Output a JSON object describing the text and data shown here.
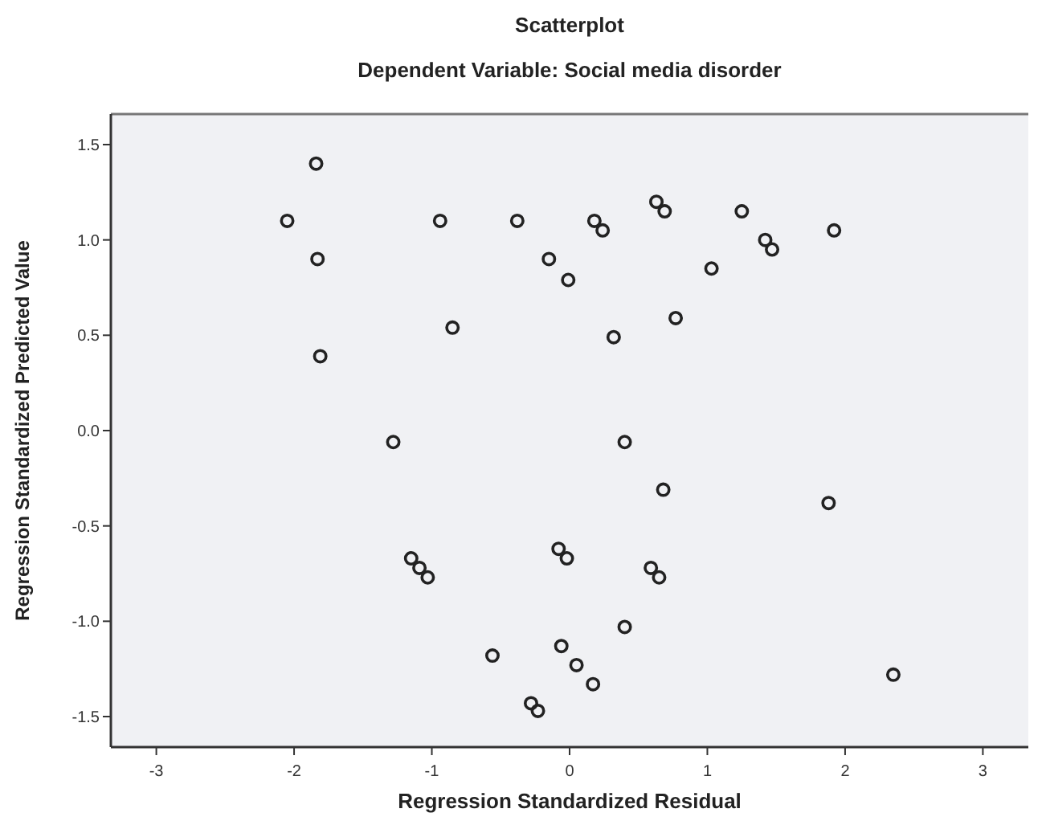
{
  "chart_data": {
    "type": "scatter",
    "title": "Scatterplot",
    "subtitle": "Dependent Variable: Social media disorder",
    "xlabel": "Regression Standardized Residual",
    "ylabel": "Regression Standardized Predicted Value",
    "xlim": [
      -3.33,
      3.33
    ],
    "ylim": [
      -1.66,
      1.66
    ],
    "xticks": [
      -3,
      -2,
      -1,
      0,
      1,
      2,
      3
    ],
    "yticks": [
      {
        "value": -1.5,
        "label": "-1.5"
      },
      {
        "value": -1,
        "label": "-1.0"
      },
      {
        "value": -0.5,
        "label": "-0.5"
      },
      {
        "value": 0,
        "label": "0.0"
      },
      {
        "value": 0.5,
        "label": "0.5"
      },
      {
        "value": 1,
        "label": "1.0"
      },
      {
        "value": 1.5,
        "label": "1.5"
      }
    ],
    "marker": "circle",
    "series": [
      {
        "color": "#222222",
        "x": [
          -1.84,
          -2.05,
          -1.83,
          -1.81,
          -0.94,
          -0.85,
          -0.38,
          -1.28,
          0.18,
          0.24,
          0.63,
          0.69,
          1.25,
          1.42,
          1.47,
          1.92,
          -0.15,
          -0.01,
          1.03,
          0.77,
          0.32,
          0.4,
          -1.15,
          -1.09,
          -1.03,
          -0.56,
          -0.28,
          -0.23,
          0.68,
          1.88,
          -0.08,
          -0.02,
          0.59,
          0.65,
          0.4,
          -0.06,
          0.05,
          0.17,
          2.35
        ],
        "values": [
          1.4,
          1.1,
          0.9,
          0.39,
          1.1,
          0.54,
          1.1,
          -0.06,
          1.1,
          1.05,
          1.2,
          1.15,
          1.15,
          1.0,
          0.95,
          1.05,
          0.9,
          0.79,
          0.85,
          0.59,
          0.49,
          -0.06,
          -0.67,
          -0.72,
          -0.77,
          -1.18,
          -1.43,
          -1.47,
          -0.31,
          -0.38,
          -0.62,
          -0.67,
          -0.72,
          -0.77,
          -1.03,
          -1.13,
          -1.23,
          -1.33,
          -1.28
        ]
      }
    ]
  }
}
